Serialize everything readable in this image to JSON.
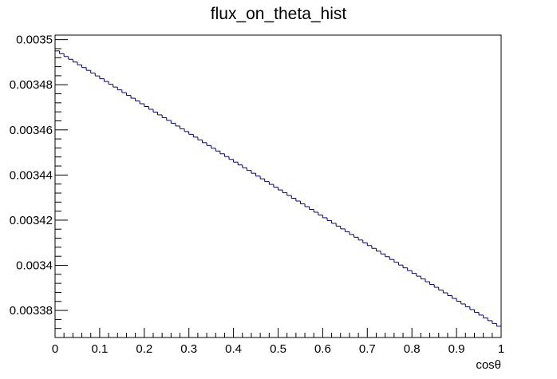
{
  "chart_data": {
    "type": "histogram",
    "title": "flux_on_theta_hist",
    "xlabel": "cosθ",
    "ylabel": "",
    "xlim": [
      0,
      1
    ],
    "ylim": [
      0.003368,
      0.003502
    ],
    "x_ticks": [
      "0",
      "0.1",
      "0.2",
      "0.3",
      "0.4",
      "0.5",
      "0.6",
      "0.7",
      "0.8",
      "0.9",
      "1"
    ],
    "y_ticks": [
      "0.00338",
      "0.0034",
      "0.00342",
      "0.00344",
      "0.00346",
      "0.00348",
      "0.0035"
    ],
    "x_tick_values": [
      0,
      0.1,
      0.2,
      0.3,
      0.4,
      0.5,
      0.6,
      0.7,
      0.8,
      0.9,
      1
    ],
    "y_tick_values": [
      0.00338,
      0.0034,
      0.00342,
      0.00344,
      0.00346,
      0.00348,
      0.0035
    ],
    "n_bins": 100,
    "bin_range": [
      0,
      1
    ],
    "first_bin_value": 0.003495,
    "last_bin_value": 0.003373,
    "grid": false,
    "legend": "none",
    "line_color": "#00007f"
  }
}
